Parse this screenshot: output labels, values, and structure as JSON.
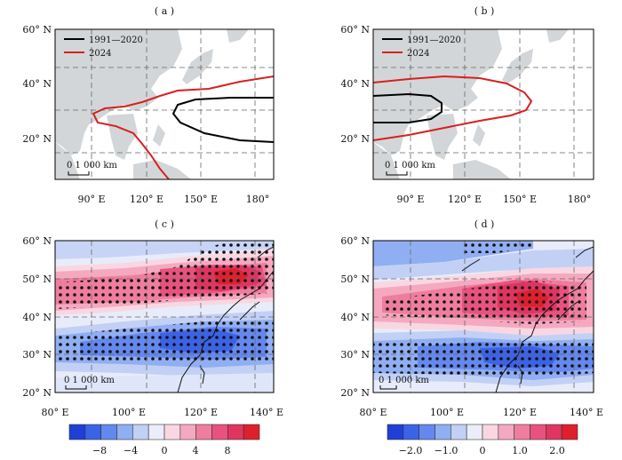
{
  "panels": {
    "a": {
      "label": "( a )",
      "y_ticks": [
        "60° N",
        "40° N",
        "20° N"
      ],
      "x_ticks": [
        "90° E",
        "120° E",
        "150° E",
        "180°"
      ],
      "legend": [
        "1991—2020",
        "2024"
      ],
      "scale": "0 1 000 km"
    },
    "b": {
      "label": "( b )",
      "y_ticks": [
        "60° N",
        "40° N",
        "20° N"
      ],
      "x_ticks": [
        "90° E",
        "120° E",
        "150° E",
        "180°"
      ],
      "legend": [
        "1991—2020",
        "2024"
      ],
      "scale": "0 1 000 km"
    },
    "c": {
      "label": "( c )",
      "y_ticks": [
        "60° N",
        "50° N",
        "40° N",
        "30° N",
        "20° N"
      ],
      "x_ticks": [
        "80° E",
        "100° E",
        "120° E",
        "140° E"
      ],
      "scale": "0 1 000 km",
      "colorbar_ticks": [
        "−8",
        "−4",
        "0",
        "4",
        "8"
      ]
    },
    "d": {
      "label": "( d )",
      "y_ticks": [
        "60° N",
        "50° N",
        "40° N",
        "30° N",
        "20° N"
      ],
      "x_ticks": [
        "80° E",
        "100° E",
        "120° E",
        "140° E"
      ],
      "scale": "0 1 000 km",
      "colorbar_ticks": [
        "−2.0",
        "−1.0",
        "0",
        "1.0",
        "2.0"
      ]
    }
  },
  "colors": {
    "black_line": "#000000",
    "red_line": "#d6211f",
    "land": "#d3d6d8",
    "colorbar": [
      "#1f3fd6",
      "#3c62e6",
      "#6488ee",
      "#90aef2",
      "#c2d0f5",
      "#ebeefa",
      "#f9d7e2",
      "#f5a9c1",
      "#ef7d9f",
      "#e8527f",
      "#e03560",
      "#e01f2e"
    ]
  }
}
